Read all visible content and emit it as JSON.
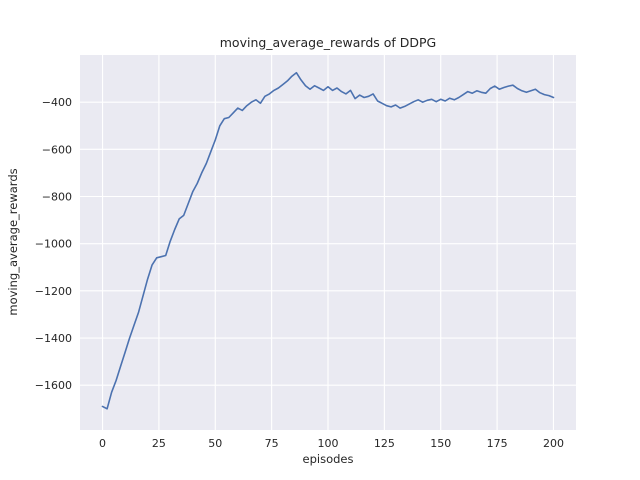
{
  "chart_data": {
    "type": "line",
    "title": "moving_average_rewards of DDPG",
    "xlabel": "episodes",
    "ylabel": "moving_average_rewards",
    "xlim": [
      -10,
      210
    ],
    "ylim": [
      -1790,
      -200
    ],
    "x_ticks": [
      0,
      25,
      50,
      75,
      100,
      125,
      150,
      175,
      200
    ],
    "y_ticks": [
      -400,
      -600,
      -800,
      -1000,
      -1200,
      -1400,
      -1600
    ],
    "grid": true,
    "legend_position": "none",
    "style": "seaborn-darkgrid",
    "colors": {
      "line": "#4c72b0",
      "plot_background": "#eaeaf2",
      "grid": "#ffffff",
      "figure_background": "#ffffff",
      "text": "#262626"
    },
    "series": [
      {
        "name": "moving_average_rewards",
        "x": [
          0,
          2,
          4,
          6,
          8,
          10,
          12,
          14,
          16,
          18,
          20,
          22,
          24,
          26,
          28,
          30,
          32,
          34,
          36,
          38,
          40,
          42,
          44,
          46,
          48,
          50,
          52,
          54,
          56,
          58,
          60,
          62,
          64,
          66,
          68,
          70,
          72,
          74,
          76,
          78,
          80,
          82,
          84,
          86,
          88,
          90,
          92,
          94,
          96,
          98,
          100,
          102,
          104,
          106,
          108,
          110,
          112,
          114,
          116,
          118,
          120,
          122,
          124,
          126,
          128,
          130,
          132,
          134,
          136,
          138,
          140,
          142,
          144,
          146,
          148,
          150,
          152,
          154,
          156,
          158,
          160,
          162,
          164,
          166,
          168,
          170,
          172,
          174,
          176,
          178,
          180,
          182,
          184,
          186,
          188,
          190,
          192,
          194,
          196,
          198,
          200
        ],
        "y": [
          -1690,
          -1700,
          -1630,
          -1580,
          -1520,
          -1460,
          -1400,
          -1345,
          -1290,
          -1220,
          -1150,
          -1090,
          -1060,
          -1055,
          -1050,
          -990,
          -940,
          -895,
          -880,
          -830,
          -780,
          -745,
          -700,
          -660,
          -610,
          -560,
          -500,
          -470,
          -465,
          -445,
          -425,
          -435,
          -415,
          -400,
          -390,
          -405,
          -375,
          -365,
          -350,
          -340,
          -325,
          -310,
          -290,
          -275,
          -305,
          -330,
          -345,
          -330,
          -340,
          -350,
          -335,
          -350,
          -340,
          -355,
          -365,
          -350,
          -385,
          -370,
          -380,
          -375,
          -365,
          -395,
          -405,
          -415,
          -420,
          -412,
          -425,
          -418,
          -408,
          -398,
          -390,
          -400,
          -392,
          -388,
          -398,
          -388,
          -395,
          -383,
          -390,
          -380,
          -368,
          -355,
          -362,
          -352,
          -358,
          -362,
          -342,
          -332,
          -345,
          -338,
          -332,
          -328,
          -342,
          -352,
          -358,
          -352,
          -345,
          -360,
          -368,
          -372,
          -380
        ]
      }
    ]
  }
}
